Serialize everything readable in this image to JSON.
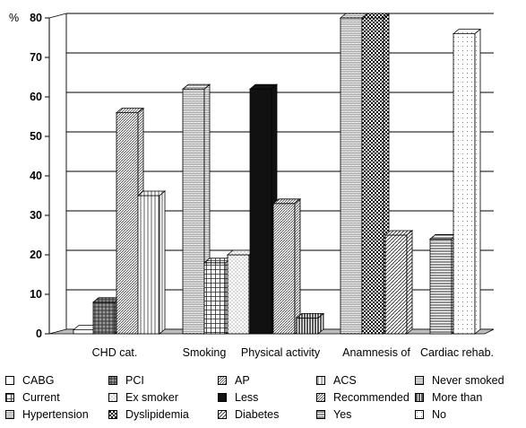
{
  "chart_data": {
    "type": "bar",
    "title": "",
    "xlabel": "",
    "ylabel": "%",
    "ylim": [
      0,
      80
    ],
    "yticks": [
      0,
      10,
      20,
      30,
      40,
      50,
      60,
      70,
      80
    ],
    "grid": true,
    "legend_position": "bottom",
    "groups": [
      {
        "label": "CHD cat.",
        "bars": [
          {
            "series": "CABG",
            "value": 1
          },
          {
            "series": "PCI",
            "value": 8
          },
          {
            "series": "AP",
            "value": 56
          },
          {
            "series": "ACS",
            "value": 35
          }
        ]
      },
      {
        "label": "Smoking",
        "bars": [
          {
            "series": "Never smoked",
            "value": 62
          },
          {
            "series": "Current",
            "value": 18
          },
          {
            "series": "Ex smoker",
            "value": 20
          }
        ]
      },
      {
        "label": "Physical activity",
        "bars": [
          {
            "series": "Less",
            "value": 62
          },
          {
            "series": "Recommended",
            "value": 33
          },
          {
            "series": "More than",
            "value": 4
          }
        ]
      },
      {
        "label": "Anamnesis of",
        "bars": [
          {
            "series": "Hypertension",
            "value": 80
          },
          {
            "series": "Dyslipidemia",
            "value": 80
          },
          {
            "series": "Diabetes",
            "value": 25
          }
        ]
      },
      {
        "label": "Cardiac rehab.",
        "bars": [
          {
            "series": "Yes",
            "value": 24
          },
          {
            "series": "No",
            "value": 76
          }
        ]
      }
    ],
    "series": [
      {
        "name": "CABG",
        "color": "#ffffff",
        "pattern": "none"
      },
      {
        "name": "PCI",
        "color": "#888888",
        "pattern": "crosshatch-dark"
      },
      {
        "name": "AP",
        "color": "#ffffff",
        "pattern": "diag-dense"
      },
      {
        "name": "ACS",
        "color": "#ffffff",
        "pattern": "vertical"
      },
      {
        "name": "Never smoked",
        "color": "#ffffff",
        "pattern": "wave"
      },
      {
        "name": "Current",
        "color": "#ffffff",
        "pattern": "grid"
      },
      {
        "name": "Ex smoker",
        "color": "#ffffff",
        "pattern": "dots"
      },
      {
        "name": "Less",
        "color": "#111111",
        "pattern": "solid"
      },
      {
        "name": "Recommended",
        "color": "#ffffff",
        "pattern": "diag-dense"
      },
      {
        "name": "More than",
        "color": "#ffffff",
        "pattern": "vertical-dark"
      },
      {
        "name": "Hypertension",
        "color": "#ffffff",
        "pattern": "wave"
      },
      {
        "name": "Dyslipidemia",
        "color": "#ffffff",
        "pattern": "checker"
      },
      {
        "name": "Diabetes",
        "color": "#ffffff",
        "pattern": "diag"
      },
      {
        "name": "Yes",
        "color": "#ffffff",
        "pattern": "horizontal"
      },
      {
        "name": "No",
        "color": "#ffffff",
        "pattern": "dots-fine"
      }
    ]
  }
}
